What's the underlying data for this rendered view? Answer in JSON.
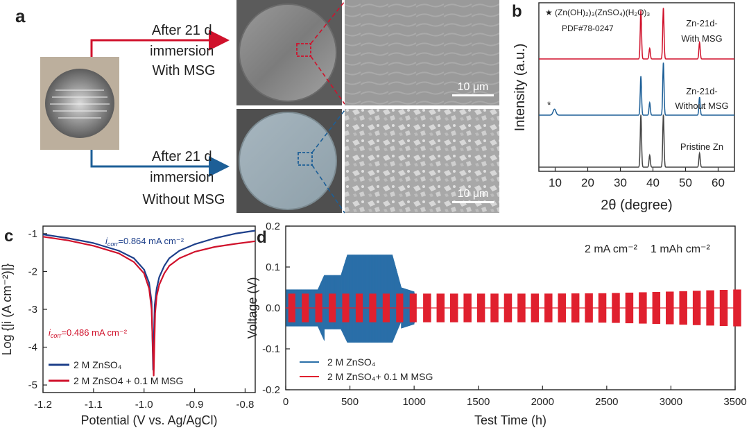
{
  "panel_labels": {
    "a": "a",
    "b": "b",
    "c": "c",
    "d": "d"
  },
  "panel_a": {
    "top_caption": [
      "After 21 d",
      "immersion",
      "With MSG"
    ],
    "bottom_caption": [
      "After 21 d",
      "immersion",
      "Without MSG"
    ],
    "scale_top": "10 μm",
    "scale_bottom": "10 μm",
    "colors": {
      "with": "#d0112b",
      "without": "#1d5f97"
    }
  },
  "chart_data": [
    {
      "id": "b",
      "type": "line",
      "title": "",
      "xlabel": "2θ (degree)",
      "ylabel": "Intensity (a.u.)",
      "xlim": [
        5,
        65
      ],
      "xticks": [
        10,
        20,
        30,
        40,
        50,
        60
      ],
      "annotations": {
        "star": "★",
        "formula": "(Zn(OH)₂)₃(ZnSO₄)(H₂O)₃",
        "pdf": "PDF#78-0247",
        "peak_star": "*"
      },
      "series": [
        {
          "name": "Zn-21d-With MSG",
          "label_lines": [
            "Zn-21d-",
            "With MSG"
          ],
          "color": "#d0112b",
          "peaks": [
            [
              36.3,
              1.0
            ],
            [
              39.0,
              0.22
            ],
            [
              43.2,
              1.05
            ],
            [
              54.3,
              0.34
            ]
          ]
        },
        {
          "name": "Zn-21d-Without MSG",
          "label_lines": [
            "Zn-21d-",
            "Without MSG"
          ],
          "color": "#1d5f97",
          "peaks": [
            [
              9.8,
              0.12
            ],
            [
              36.3,
              0.78
            ],
            [
              39.0,
              0.25
            ],
            [
              43.2,
              1.05
            ],
            [
              54.3,
              0.36
            ]
          ]
        },
        {
          "name": "Pristine Zn",
          "label_lines": [
            "Pristine Zn"
          ],
          "color": "#444444",
          "peaks": [
            [
              36.3,
              1.05
            ],
            [
              39.0,
              0.24
            ],
            [
              43.2,
              1.05
            ],
            [
              54.3,
              0.28
            ]
          ]
        }
      ]
    },
    {
      "id": "c",
      "type": "line",
      "xlabel": "Potential (V vs. Ag/AgCl)",
      "ylabel": "Log {|i (A cm⁻²)|}",
      "xlim": [
        -1.2,
        -0.78
      ],
      "ylim": [
        -5.2,
        -0.8
      ],
      "xticks": [
        -1.2,
        -1.1,
        -1.0,
        -0.9,
        -0.8
      ],
      "yticks": [
        -1,
        -2,
        -3,
        -4,
        -5
      ],
      "icorr_blue": "=0.864 mA cm⁻²",
      "icorr_red": "=0.486 mA cm⁻²",
      "icorr_prefix": "i",
      "icorr_sub": "corr",
      "series": [
        {
          "name": "2 M ZnSO₄",
          "color": "#1d3f8a",
          "x": [
            -1.2,
            -1.15,
            -1.1,
            -1.05,
            -1.02,
            -1.0,
            -0.99,
            -0.985,
            -0.982,
            -0.979,
            -0.975,
            -0.97,
            -0.96,
            -0.95,
            -0.93,
            -0.9,
            -0.86,
            -0.82,
            -0.78
          ],
          "y": [
            -1.02,
            -1.12,
            -1.25,
            -1.45,
            -1.65,
            -1.95,
            -2.3,
            -2.8,
            -4.6,
            -2.9,
            -2.45,
            -2.15,
            -1.85,
            -1.65,
            -1.45,
            -1.28,
            -1.12,
            -1.0,
            -0.92
          ]
        },
        {
          "name": "2 M ZnSO4 + 0.1 M MSG",
          "color": "#d0112b",
          "x": [
            -1.2,
            -1.15,
            -1.1,
            -1.05,
            -1.02,
            -1.0,
            -0.99,
            -0.985,
            -0.981,
            -0.978,
            -0.975,
            -0.97,
            -0.96,
            -0.95,
            -0.93,
            -0.9,
            -0.86,
            -0.82,
            -0.78
          ],
          "y": [
            -1.08,
            -1.18,
            -1.32,
            -1.52,
            -1.75,
            -2.05,
            -2.45,
            -3.0,
            -4.75,
            -3.1,
            -2.65,
            -2.35,
            -2.05,
            -1.85,
            -1.65,
            -1.48,
            -1.35,
            -1.27,
            -1.2
          ]
        }
      ]
    },
    {
      "id": "d",
      "type": "line",
      "xlabel": "Test Time (h)",
      "ylabel": "Voltage (V)",
      "xlim": [
        0,
        3500
      ],
      "ylim": [
        -0.2,
        0.2
      ],
      "xticks": [
        0,
        500,
        1000,
        1500,
        2000,
        2500,
        3000,
        3500
      ],
      "yticks": [
        -0.2,
        -0.1,
        0.0,
        0.1,
        0.2
      ],
      "condition_current": "2 mA cm⁻²",
      "condition_capacity": "1 mAh cm⁻²",
      "series": [
        {
          "name": "2 M ZnSO₄",
          "color": "#2a6fa8",
          "segments": [
            [
              0,
              1010
            ]
          ],
          "envelope": [
            [
              0,
              0.045
            ],
            [
              60,
              0.045
            ],
            [
              250,
              0.045
            ],
            [
              300,
              0.08
            ],
            [
              430,
              0.08
            ],
            [
              480,
              0.13
            ],
            [
              830,
              0.13
            ],
            [
              900,
              0.05
            ],
            [
              1000,
              0.04
            ],
            [
              1010,
              0.02
            ]
          ]
        },
        {
          "name": "2 M ZnSO₄+ 0.1 M MSG",
          "color": "#e0202e",
          "segments": [
            [
              0,
              3500
            ]
          ],
          "envelope": [
            [
              0,
              0.035
            ],
            [
              500,
              0.035
            ],
            [
              1000,
              0.035
            ],
            [
              1500,
              0.035
            ],
            [
              2000,
              0.035
            ],
            [
              2500,
              0.036
            ],
            [
              3000,
              0.04
            ],
            [
              3500,
              0.045
            ]
          ]
        }
      ]
    }
  ]
}
